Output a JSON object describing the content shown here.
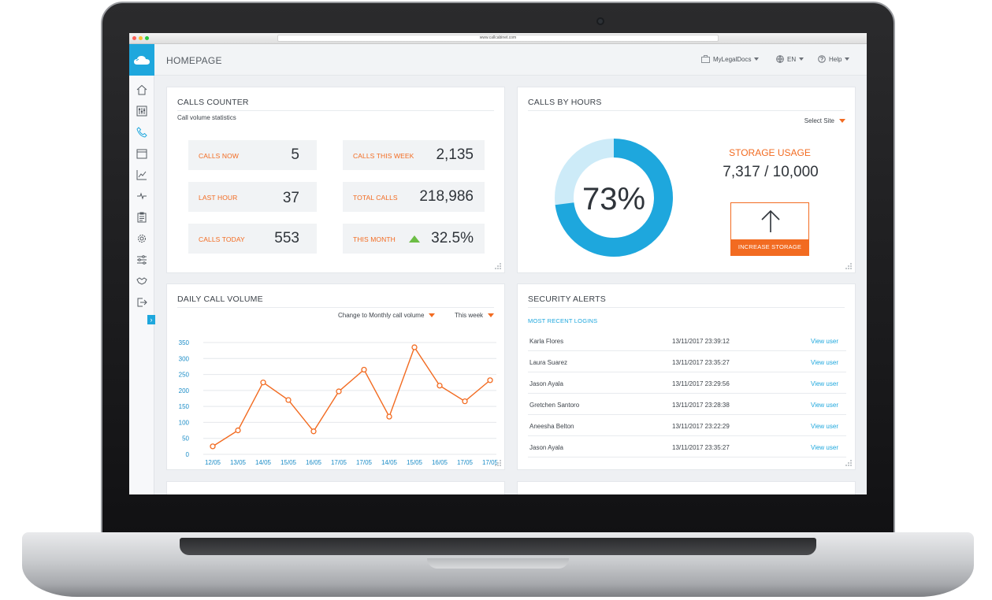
{
  "browser": {
    "url": "www.callcabinet.com"
  },
  "header": {
    "title": "HOMEPAGE",
    "account": "MyLegalDocs",
    "language": "EN",
    "help": "Help"
  },
  "sidebar": {
    "icons": [
      "home-icon",
      "switchboard-icon",
      "phone-icon",
      "calendar-icon",
      "chart-icon",
      "pulse-icon",
      "clipboard-icon",
      "gear-icon",
      "sliders-icon",
      "handshake-icon",
      "logout-icon"
    ],
    "expand_label": "›"
  },
  "calls_counter": {
    "title": "CALLS COUNTER",
    "subtitle": "Call volume statistics",
    "stats": [
      {
        "label": "CALLS NOW",
        "value": "5"
      },
      {
        "label": "CALLS THIS WEEK",
        "value": "2,135"
      },
      {
        "label": "LAST HOUR",
        "value": "37"
      },
      {
        "label": "TOTAL CALLS",
        "value": "218,986"
      },
      {
        "label": "CALLS TODAY",
        "value": "553"
      },
      {
        "label": "THIS MONTH",
        "value": "32.5%"
      }
    ]
  },
  "calls_by_hours": {
    "title": "CALLS BY HOURS",
    "select_site": "Select Site",
    "percent_label": "73%",
    "percent_value": 73,
    "storage_title": "STORAGE USAGE",
    "storage_value": "7,317 / 10,000",
    "increase_button": "INCREASE STORAGE",
    "colors": {
      "ring": "#1ea7dd",
      "ring_rest": "#cdebf8"
    }
  },
  "daily_call_volume": {
    "title": "DAILY CALL VOLUME",
    "change_dropdown": "Change to Monthly call volume",
    "period_dropdown": "This week"
  },
  "chart_data": {
    "type": "line",
    "title": "",
    "xlabel": "",
    "ylabel": "",
    "categories": [
      "12/05",
      "13/05",
      "14/05",
      "15/05",
      "16/05",
      "17/05",
      "17/05",
      "14/05",
      "15/05",
      "16/05",
      "17/05",
      "17/05"
    ],
    "series": [
      {
        "values": [
          25,
          75,
          225,
          170,
          72,
          197,
          265,
          118,
          335,
          215,
          166,
          232
        ]
      }
    ],
    "yticks": [
      0,
      50,
      100,
      150,
      200,
      250,
      300,
      350
    ],
    "ylim": [
      0,
      350
    ],
    "grid": true,
    "colors": {
      "line": "#f26b21",
      "tick_label": "#1a8cc7",
      "grid": "#e4e7eb"
    }
  },
  "security_alerts": {
    "title": "SECURITY ALERTS",
    "subtitle": "MOST RECENT LOGINS",
    "rows": [
      {
        "name": "Karla Flores",
        "time": "13/11/2017 23:39:12",
        "link": "View user"
      },
      {
        "name": "Laura Suarez",
        "time": "13/11/2017 23:35:27",
        "link": "View user"
      },
      {
        "name": "Jason Ayala",
        "time": "13/11/2017 23:29:56",
        "link": "View user"
      },
      {
        "name": "Gretchen Santoro",
        "time": "13/11/2017 23:28:38",
        "link": "View user"
      },
      {
        "name": "Aneesha Belton",
        "time": "13/11/2017 23:22:29",
        "link": "View user"
      },
      {
        "name": "Jason Ayala",
        "time": "13/11/2017 23:35:27",
        "link": "View user"
      }
    ]
  }
}
